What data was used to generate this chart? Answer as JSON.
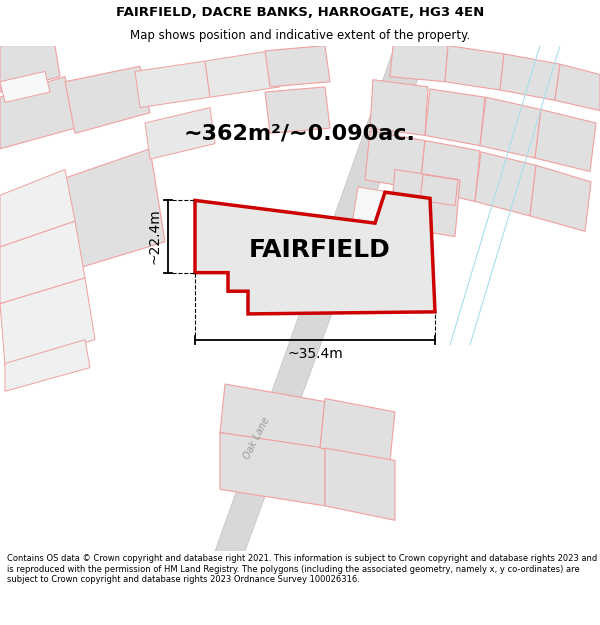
{
  "title_line1": "FAIRFIELD, DACRE BANKS, HARROGATE, HG3 4EN",
  "title_line2": "Map shows position and indicative extent of the property.",
  "area_text": "~362m²/~0.090ac.",
  "label": "FAIRFIELD",
  "dim_width": "~35.4m",
  "dim_height": "~22.4m",
  "road_label": "Oak Lane",
  "footer": "Contains OS data © Crown copyright and database right 2021. This information is subject to Crown copyright and database rights 2023 and is reproduced with the permission of HM Land Registry. The polygons (including the associated geometry, namely x, y co-ordinates) are subject to Crown copyright and database rights 2023 Ordnance Survey 100026316.",
  "bg_color": "#ffffff",
  "main_poly_fill": "#e8e8e8",
  "main_poly_edge": "#cc0000",
  "neighbor_fill": "#e0e0e0",
  "neighbor_edge": "#f0a0a0",
  "road_fill": "#d0d0d0",
  "title_fontsize": 9.5,
  "subtitle_fontsize": 8.5,
  "footer_fontsize": 6.0,
  "area_fontsize": 16,
  "label_fontsize": 18,
  "dim_fontsize": 10
}
